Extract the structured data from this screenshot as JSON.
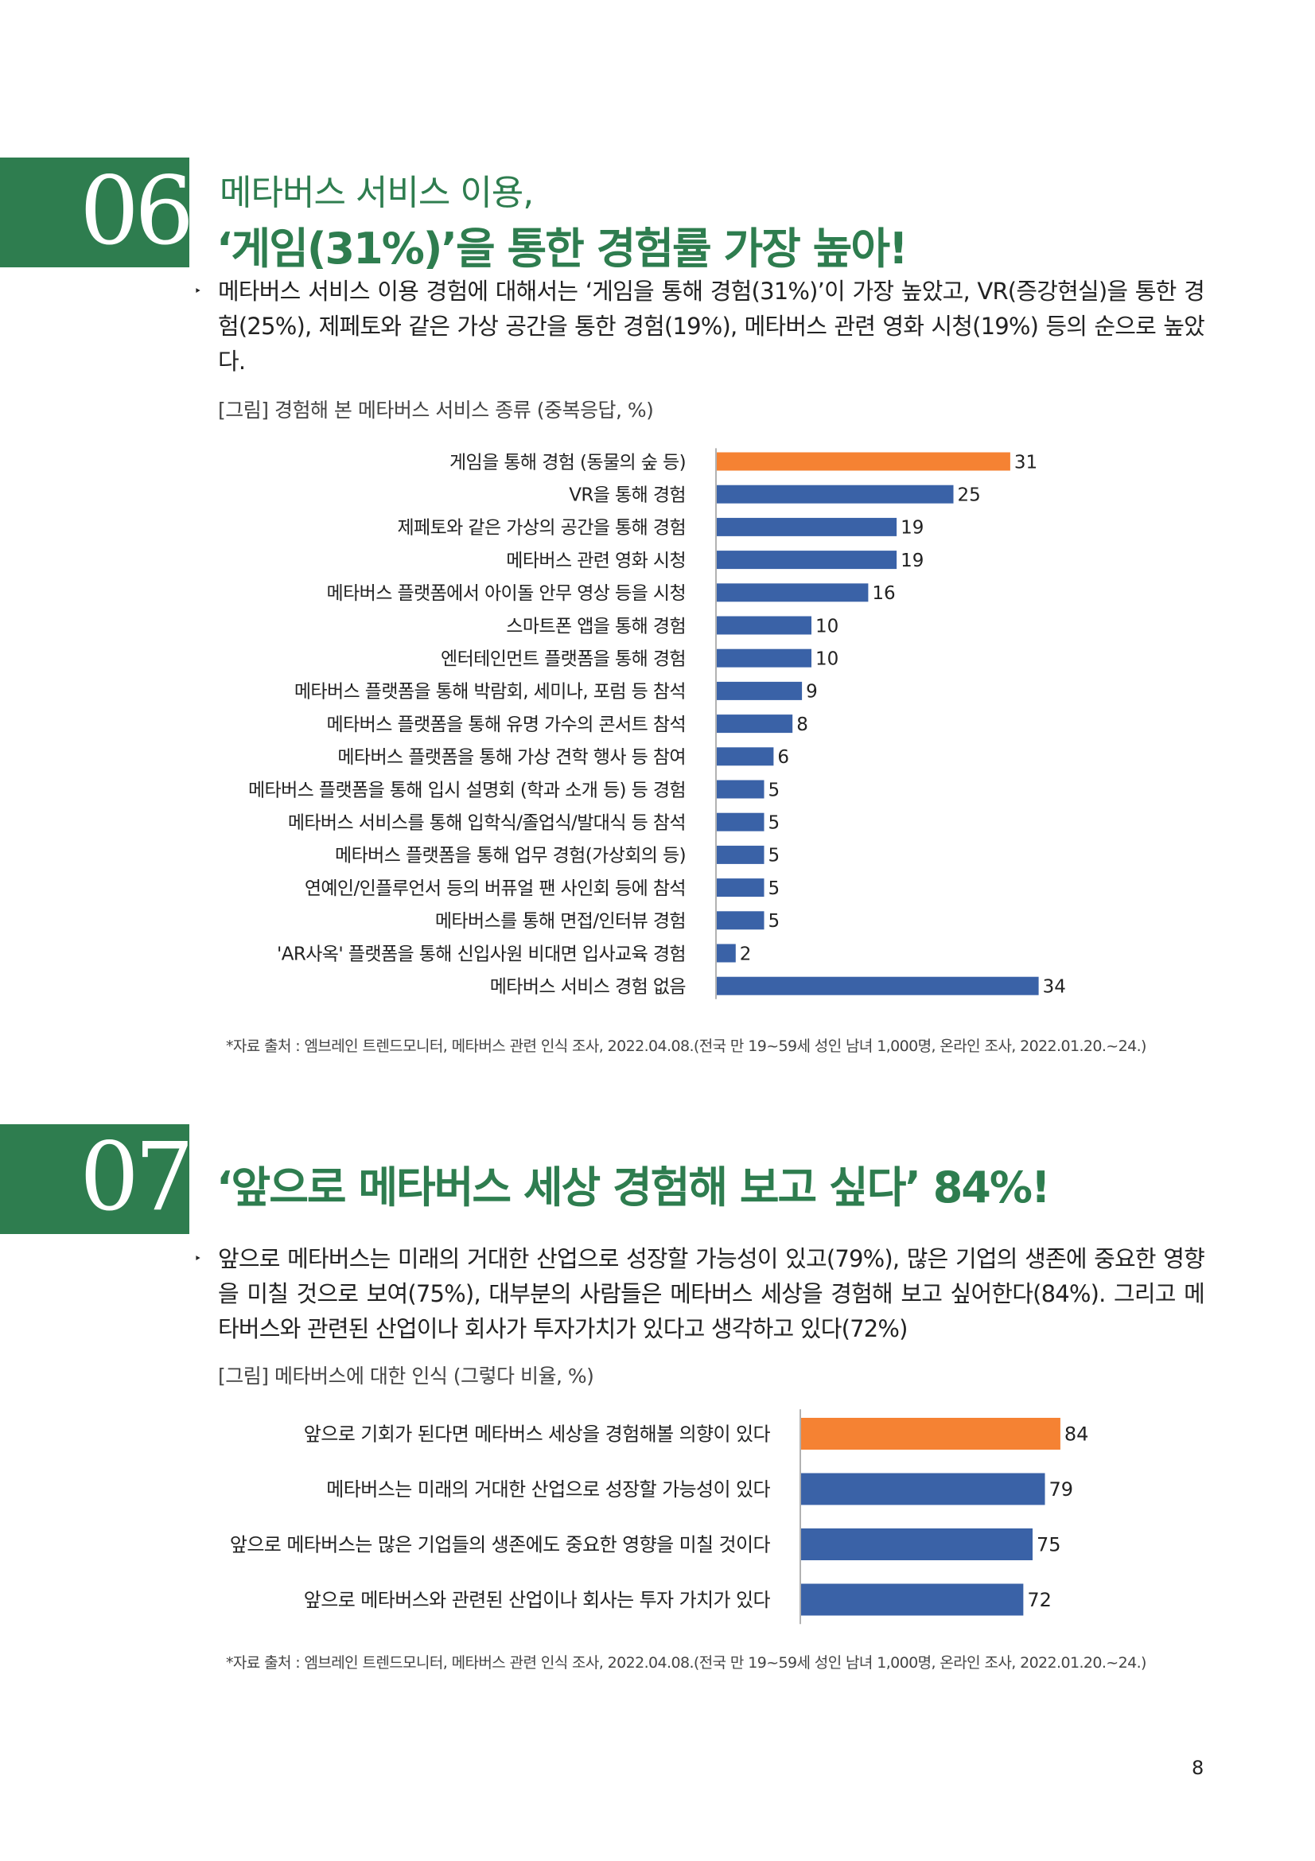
{
  "section6": {
    "number": "06",
    "title_line1": "메타버스 서비스 이용,",
    "title_line2": "‘게임(31%)’을 통한 경험률 가장 높아!",
    "bullet": "‣",
    "paragraph": "메타버스 서비스 이용 경험에 대해서는 ‘게임을 통해 경험(31%)’이 가장 높았고, VR(증강현실)을 통한 경험(25%), 제페토와 같은 가상 공간을 통한 경험(19%), 메타버스 관련 영화 시청(19%) 등의 순으로 높았다.",
    "figure_caption": "[그림] 경험해 본 메타버스 서비스 종류 (중복응답, %)",
    "source": "*자료 출처 : 엠브레인 트렌드모니터, 메타버스 관련 인식 조사, 2022.04.08.(전국 만 19~59세 성인 남녀 1,000명, 온라인 조사, 2022.01.20.~24.)"
  },
  "section7": {
    "number": "07",
    "title": "‘앞으로 메타버스 세상 경험해 보고 싶다’ 84%!",
    "bullet": "‣",
    "paragraph": "앞으로 메타버스는 미래의 거대한 산업으로 성장할 가능성이 있고(79%), 많은 기업의 생존에 중요한 영향을 미칠 것으로 보여(75%), 대부분의 사람들은 메타버스 세상을 경험해 보고 싶어한다(84%). 그리고 메타버스와 관련된 산업이나 회사가 투자가치가 있다고 생각하고 있다(72%)",
    "figure_caption": "[그림] 메타버스에 대한 인식 (그렇다 비율, %)",
    "source": "*자료 출처 : 엠브레인 트렌드모니터, 메타버스 관련 인식 조사, 2022.04.08.(전국 만 19~59세 성인 남녀 1,000명, 온라인 조사, 2022.01.20.~24.)"
  },
  "page_number": "8",
  "colors": {
    "green": "#2e7d4f",
    "highlight": "#f58233",
    "bar": "#3a62a7"
  },
  "chart_data": [
    {
      "type": "bar",
      "orientation": "horizontal",
      "title": "[그림] 경험해 본 메타버스 서비스 종류 (중복응답, %)",
      "categories": [
        "게임을 통해 경험 (동물의 숲 등)",
        "VR을 통해 경험",
        "제페토와 같은 가상의 공간을 통해 경험",
        "메타버스 관련 영화 시청",
        "메타버스 플랫폼에서 아이돌 안무 영상 등을 시청",
        "스마트폰 앱을 통해 경험",
        "엔터테인먼트 플랫폼을 통해 경험",
        "메타버스 플랫폼을 통해 박람회, 세미나, 포럼 등 참석",
        "메타버스 플랫폼을 통해 유명 가수의 콘서트 참석",
        "메타버스 플랫폼을 통해 가상 견학 행사 등 참여",
        "메타버스 플랫폼을 통해 입시 설명회 (학과 소개 등) 등 경험",
        "메타버스 서비스를 통해 입학식/졸업식/발대식 등 참석",
        "메타버스 플랫폼을 통해 업무 경험(가상회의 등)",
        "연예인/인플루언서 등의 버퓨얼 팬 사인회 등에 참석",
        "메타버스를 통해 면접/인터뷰 경험",
        "'AR사옥' 플랫폼을 통해 신입사원 비대면 입사교육 경험",
        "메타버스 서비스 경험 없음"
      ],
      "values": [
        31,
        25,
        19,
        19,
        16,
        10,
        10,
        9,
        8,
        6,
        5,
        5,
        5,
        5,
        5,
        2,
        34
      ],
      "value_labels": [
        "31",
        "25",
        "19",
        "19",
        "16",
        "10",
        "10",
        "9",
        "8",
        "6",
        "5",
        "5",
        "5",
        "5",
        "5",
        "2",
        "34"
      ],
      "highlight_index": 0,
      "xlim": [
        0,
        40
      ]
    },
    {
      "type": "bar",
      "orientation": "horizontal",
      "title": "[그림] 메타버스에 대한 인식 (그렇다 비율, %)",
      "categories": [
        "앞으로 기회가 된다면 메타버스 세상을 경험해볼 의향이 있다",
        "메타버스는 미래의 거대한 산업으로 성장할 가능성이 있다",
        "앞으로 메타버스는 많은 기업들의 생존에도 중요한 영향을 미칠 것이다",
        "앞으로 메타버스와 관련된 산업이나 회사는 투자 가치가 있다"
      ],
      "values": [
        84,
        79,
        75,
        72
      ],
      "value_labels": [
        "84",
        "79",
        "75",
        "72"
      ],
      "highlight_index": 0,
      "xlim": [
        0,
        100
      ]
    }
  ]
}
